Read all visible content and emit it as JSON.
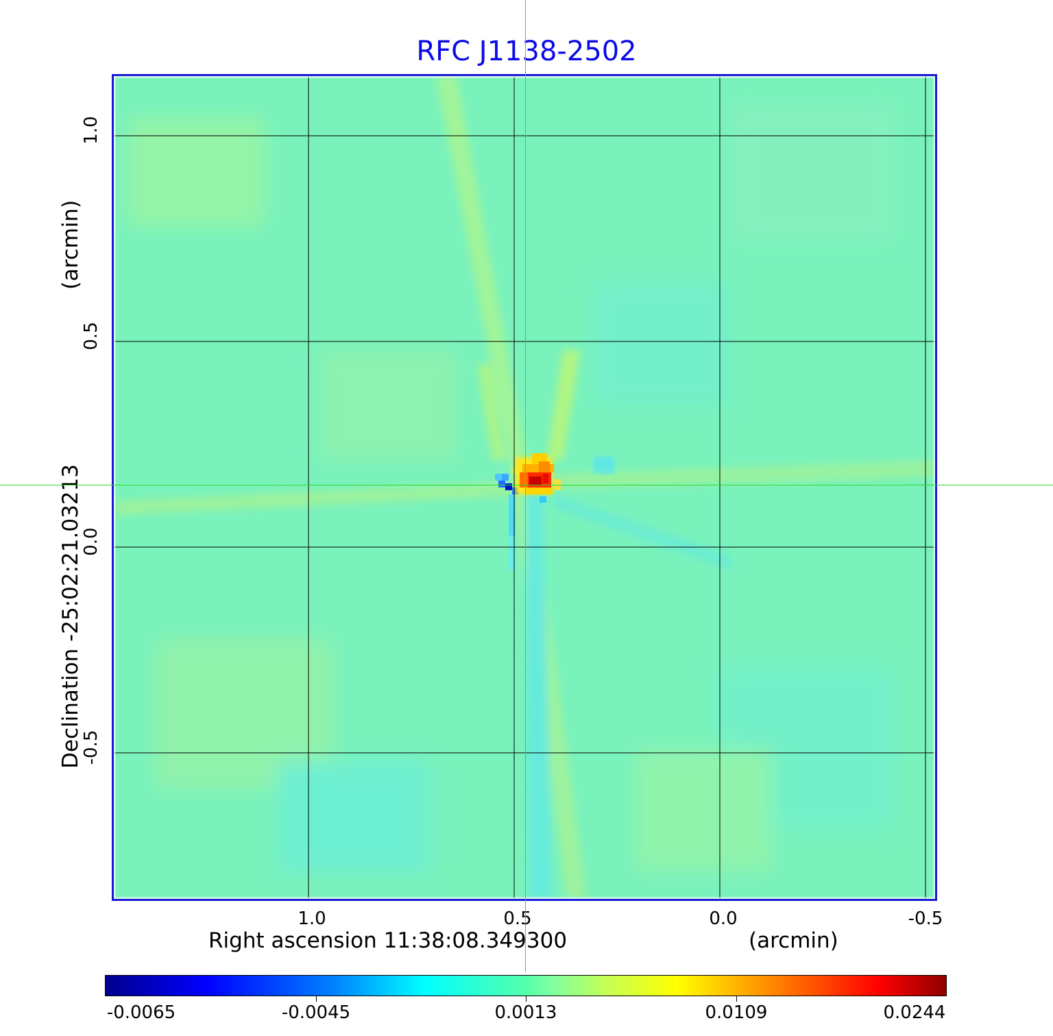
{
  "title": "RFC J1138-2502",
  "y_axis": {
    "label": "Declination  -25:02:21.03213",
    "unit": "(arcmin)",
    "ticks": [
      "1.0",
      "0.5",
      "0.0",
      "-0.5"
    ]
  },
  "x_axis": {
    "label": "Right ascension  11:38:08.349300",
    "unit": "(arcmin)",
    "ticks": [
      "1.0",
      "0.5",
      "0.0",
      "-0.5"
    ]
  },
  "colorbar": {
    "ticks": [
      "-0.0065",
      "-0.0045",
      "0.0013",
      "0.0109",
      "0.0244"
    ]
  },
  "colors": {
    "title": "#0a0ae6",
    "frame": "#1a1ad6",
    "crosshair": "#2fd82f",
    "background_map": "#78f0be"
  }
}
